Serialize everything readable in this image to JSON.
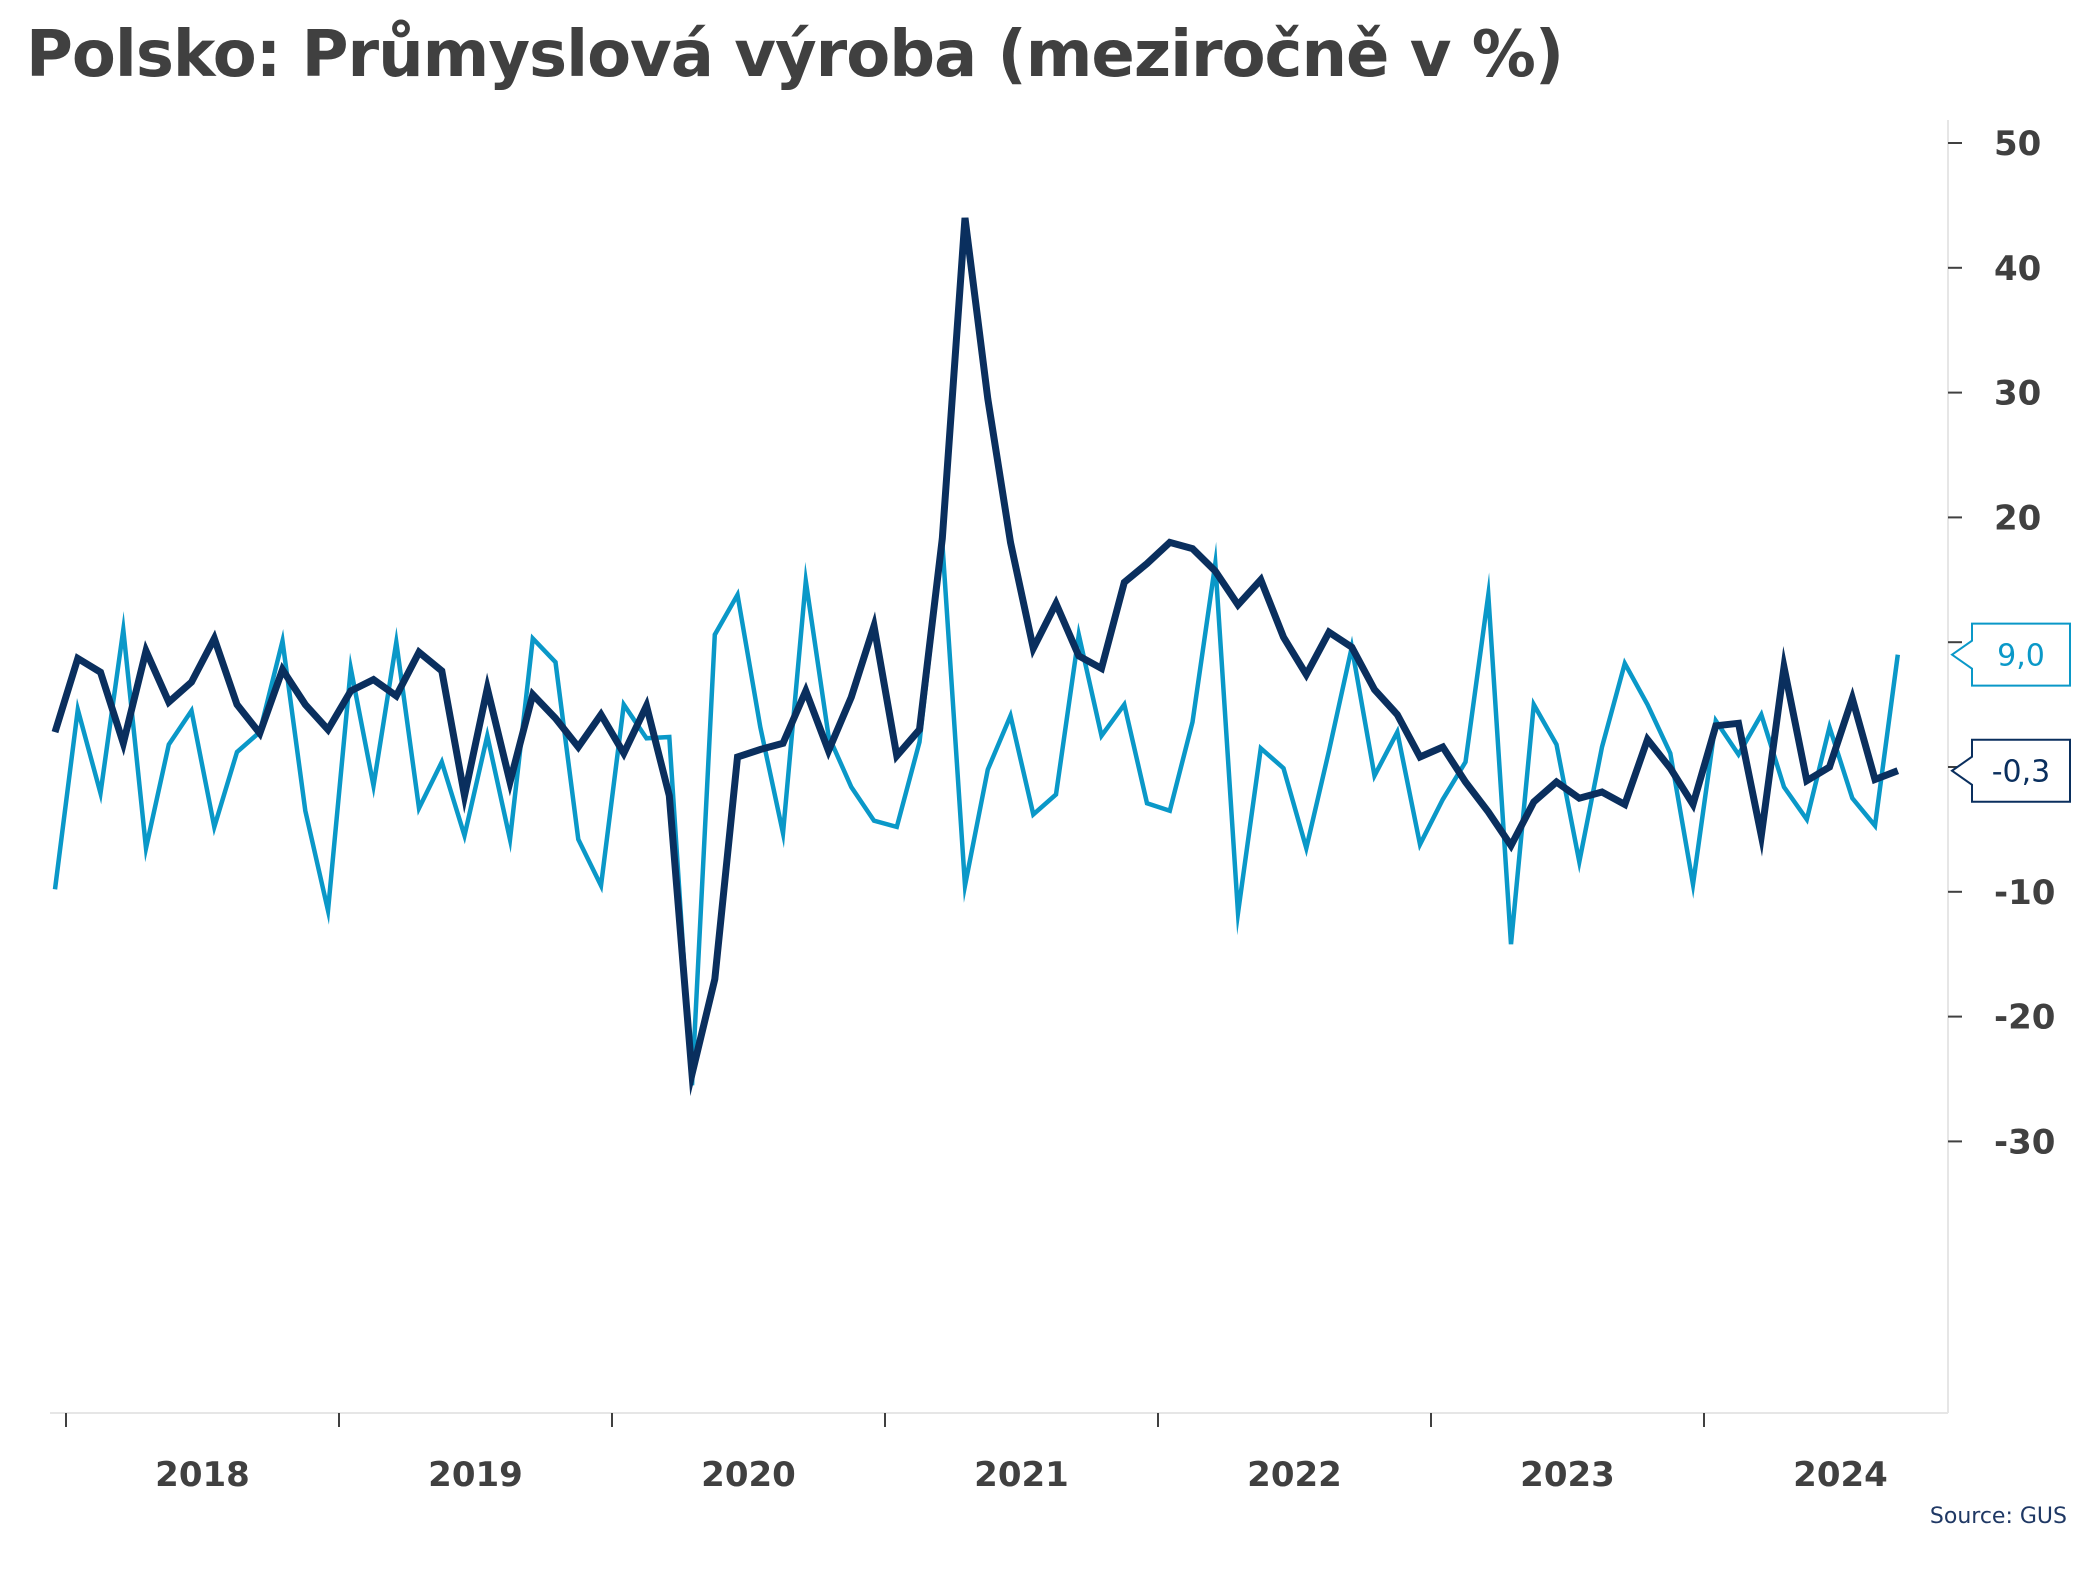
{
  "chart_data": {
    "type": "line",
    "title": "Polsko: Průmyslová výroba (meziročně v %)",
    "source": "Source: GUS",
    "x_start": "2018-01",
    "x_end": "2024-10",
    "year_labels": [
      "2018",
      "2019",
      "2020",
      "2021",
      "2022",
      "2023",
      "2024"
    ],
    "y_axis": {
      "side": "right",
      "min": -30,
      "max": 50,
      "ticks": [
        -30,
        -20,
        -10,
        0,
        10,
        20,
        30,
        40,
        50
      ]
    },
    "grid": false,
    "colors": {
      "dark": "#0a2f5e",
      "light": "#0a98c8",
      "text": "#404040"
    },
    "series": [
      {
        "color": "#0a2f5e",
        "last_label": "-0,3",
        "values": [
          2.8,
          8.7,
          7.6,
          1.9,
          9.3,
          5.2,
          6.8,
          10.3,
          5.0,
          2.7,
          7.8,
          5.0,
          3.0,
          6.1,
          7.0,
          5.7,
          9.2,
          7.7,
          -2.3,
          6.3,
          -1.2,
          5.8,
          3.9,
          1.6,
          4.2,
          1.1,
          4.9,
          -2.3,
          -24.6,
          -17.0,
          0.8,
          1.4,
          1.9,
          6.1,
          1.3,
          5.6,
          11.3,
          0.9,
          3.0,
          18.3,
          44.0,
          29.5,
          18.0,
          9.5,
          13.1,
          8.9,
          7.9,
          14.8,
          16.3,
          18.0,
          17.5,
          15.7,
          13.0,
          15.0,
          10.4,
          7.4,
          10.8,
          9.6,
          6.2,
          4.2,
          0.8,
          1.6,
          -1.2,
          -3.6,
          -6.3,
          -2.8,
          -1.2,
          -2.5,
          -2.0,
          -3.0,
          2.2,
          -0.1,
          -3.0,
          3.3,
          3.5,
          -5.5,
          8.0,
          -1.1,
          0.0,
          5.5,
          -1.0,
          -0.3
        ]
      },
      {
        "color": "#0a98c8",
        "last_label": "9,0",
        "values": [
          -9.8,
          4.6,
          -2.1,
          11.0,
          -6.5,
          1.8,
          4.5,
          -4.8,
          1.2,
          2.8,
          10.1,
          -3.5,
          -11.5,
          7.9,
          -1.5,
          10.0,
          -3.3,
          0.4,
          -5.5,
          2.5,
          -5.8,
          10.3,
          8.4,
          -5.8,
          -9.5,
          5.0,
          2.3,
          2.4,
          -25.5,
          10.6,
          13.8,
          3.2,
          -5.3,
          14.9,
          2.5,
          -1.6,
          -4.3,
          -4.8,
          2.0,
          18.0,
          -9.5,
          -0.2,
          4.1,
          -3.8,
          -2.2,
          10.6,
          2.5,
          5.0,
          -2.9,
          -3.5,
          3.6,
          16.3,
          -11.7,
          1.5,
          -0.1,
          -6.5,
          1.3,
          9.6,
          -0.7,
          2.8,
          -6.2,
          -2.6,
          0.4,
          13.8,
          -14.2,
          5.0,
          1.8,
          -7.6,
          1.6,
          8.3,
          5.0,
          1.1,
          -9.4,
          3.7,
          1.0,
          4.2,
          -1.6,
          -4.2,
          3.2,
          -2.5,
          -4.7,
          9.0
        ]
      }
    ]
  }
}
